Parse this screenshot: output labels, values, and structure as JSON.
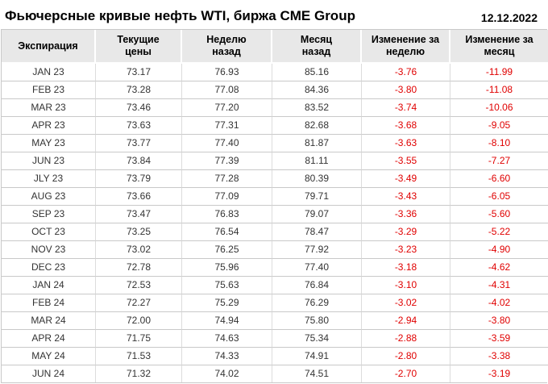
{
  "page": {
    "title": "Фьючерсные кривые нефть WTI, биржа CME Group",
    "date": "12.12.2022"
  },
  "colors": {
    "header_bg": "#e8e8e8",
    "border": "#c9c9c9",
    "negative": "#e00000",
    "text": "#333333"
  },
  "table": {
    "columns": [
      "Экспирация",
      "Текущие\nцены",
      "Неделю\nназад",
      "Месяц\nназад",
      "Изменение за\nнеделю",
      "Изменение за\nмесяц"
    ],
    "rows": [
      {
        "expiration": "JAN 23",
        "current": "73.17",
        "week_ago": "76.93",
        "month_ago": "85.16",
        "change_week": "-3.76",
        "change_month": "-11.99"
      },
      {
        "expiration": "FEB 23",
        "current": "73.28",
        "week_ago": "77.08",
        "month_ago": "84.36",
        "change_week": "-3.80",
        "change_month": "-11.08"
      },
      {
        "expiration": "MAR 23",
        "current": "73.46",
        "week_ago": "77.20",
        "month_ago": "83.52",
        "change_week": "-3.74",
        "change_month": "-10.06"
      },
      {
        "expiration": "APR 23",
        "current": "73.63",
        "week_ago": "77.31",
        "month_ago": "82.68",
        "change_week": "-3.68",
        "change_month": "-9.05"
      },
      {
        "expiration": "MAY 23",
        "current": "73.77",
        "week_ago": "77.40",
        "month_ago": "81.87",
        "change_week": "-3.63",
        "change_month": "-8.10"
      },
      {
        "expiration": "JUN 23",
        "current": "73.84",
        "week_ago": "77.39",
        "month_ago": "81.11",
        "change_week": "-3.55",
        "change_month": "-7.27"
      },
      {
        "expiration": "JLY 23",
        "current": "73.79",
        "week_ago": "77.28",
        "month_ago": "80.39",
        "change_week": "-3.49",
        "change_month": "-6.60"
      },
      {
        "expiration": "AUG 23",
        "current": "73.66",
        "week_ago": "77.09",
        "month_ago": "79.71",
        "change_week": "-3.43",
        "change_month": "-6.05"
      },
      {
        "expiration": "SEP 23",
        "current": "73.47",
        "week_ago": "76.83",
        "month_ago": "79.07",
        "change_week": "-3.36",
        "change_month": "-5.60"
      },
      {
        "expiration": "OCT 23",
        "current": "73.25",
        "week_ago": "76.54",
        "month_ago": "78.47",
        "change_week": "-3.29",
        "change_month": "-5.22"
      },
      {
        "expiration": "NOV 23",
        "current": "73.02",
        "week_ago": "76.25",
        "month_ago": "77.92",
        "change_week": "-3.23",
        "change_month": "-4.90"
      },
      {
        "expiration": "DEC 23",
        "current": "72.78",
        "week_ago": "75.96",
        "month_ago": "77.40",
        "change_week": "-3.18",
        "change_month": "-4.62"
      },
      {
        "expiration": "JAN 24",
        "current": "72.53",
        "week_ago": "75.63",
        "month_ago": "76.84",
        "change_week": "-3.10",
        "change_month": "-4.31"
      },
      {
        "expiration": "FEB 24",
        "current": "72.27",
        "week_ago": "75.29",
        "month_ago": "76.29",
        "change_week": "-3.02",
        "change_month": "-4.02"
      },
      {
        "expiration": "MAR 24",
        "current": "72.00",
        "week_ago": "74.94",
        "month_ago": "75.80",
        "change_week": "-2.94",
        "change_month": "-3.80"
      },
      {
        "expiration": "APR 24",
        "current": "71.75",
        "week_ago": "74.63",
        "month_ago": "75.34",
        "change_week": "-2.88",
        "change_month": "-3.59"
      },
      {
        "expiration": "MAY 24",
        "current": "71.53",
        "week_ago": "74.33",
        "month_ago": "74.91",
        "change_week": "-2.80",
        "change_month": "-3.38"
      },
      {
        "expiration": "JUN 24",
        "current": "71.32",
        "week_ago": "74.02",
        "month_ago": "74.51",
        "change_week": "-2.70",
        "change_month": "-3.19"
      }
    ]
  },
  "chart_data": {
    "type": "table",
    "title": "Фьючерсные кривые нефть WTI, биржа CME Group",
    "date": "12.12.2022",
    "columns": [
      "Экспирация",
      "Текущие цены",
      "Неделю назад",
      "Месяц назад",
      "Изменение за неделю",
      "Изменение за месяц"
    ],
    "rows": [
      [
        "JAN 23",
        73.17,
        76.93,
        85.16,
        -3.76,
        -11.99
      ],
      [
        "FEB 23",
        73.28,
        77.08,
        84.36,
        -3.8,
        -11.08
      ],
      [
        "MAR 23",
        73.46,
        77.2,
        83.52,
        -3.74,
        -10.06
      ],
      [
        "APR 23",
        73.63,
        77.31,
        82.68,
        -3.68,
        -9.05
      ],
      [
        "MAY 23",
        73.77,
        77.4,
        81.87,
        -3.63,
        -8.1
      ],
      [
        "JUN 23",
        73.84,
        77.39,
        81.11,
        -3.55,
        -7.27
      ],
      [
        "JLY 23",
        73.79,
        77.28,
        80.39,
        -3.49,
        -6.6
      ],
      [
        "AUG 23",
        73.66,
        77.09,
        79.71,
        -3.43,
        -6.05
      ],
      [
        "SEP 23",
        73.47,
        76.83,
        79.07,
        -3.36,
        -5.6
      ],
      [
        "OCT 23",
        73.25,
        76.54,
        78.47,
        -3.29,
        -5.22
      ],
      [
        "NOV 23",
        73.02,
        76.25,
        77.92,
        -3.23,
        -4.9
      ],
      [
        "DEC 23",
        72.78,
        75.96,
        77.4,
        -3.18,
        -4.62
      ],
      [
        "JAN 24",
        72.53,
        75.63,
        76.84,
        -3.1,
        -4.31
      ],
      [
        "FEB 24",
        72.27,
        75.29,
        76.29,
        -3.02,
        -4.02
      ],
      [
        "MAR 24",
        72.0,
        74.94,
        75.8,
        -2.94,
        -3.8
      ],
      [
        "APR 24",
        71.75,
        74.63,
        75.34,
        -2.88,
        -3.59
      ],
      [
        "MAY 24",
        71.53,
        74.33,
        74.91,
        -2.8,
        -3.38
      ],
      [
        "JUN 24",
        71.32,
        74.02,
        74.51,
        -2.7,
        -3.19
      ]
    ]
  }
}
